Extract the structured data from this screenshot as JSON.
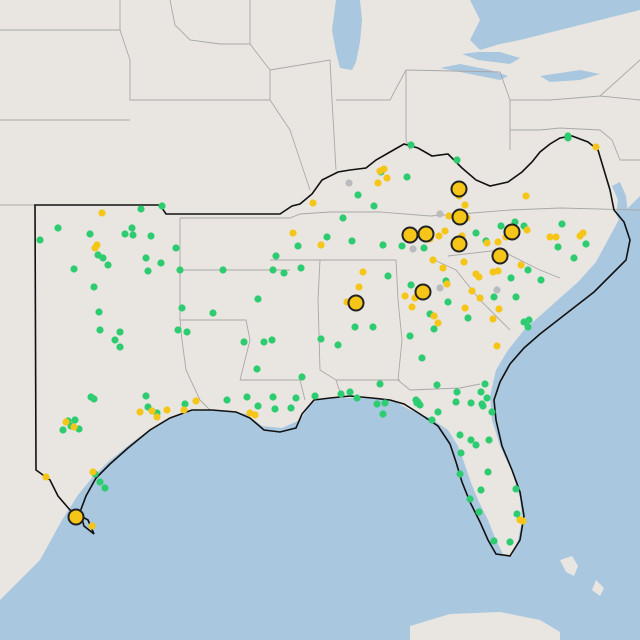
{
  "map": {
    "style": "light-gray-canvas",
    "colors": {
      "land": "#e9e6e1",
      "water": "#a9c7df",
      "state_border": "#a8a8a8",
      "region_outline": "#111111",
      "green_marker": "#2ecc71",
      "yellow_marker": "#f5c518",
      "gray_marker": "#b9bbbd",
      "large_marker_stroke": "#222222"
    },
    "legend": []
  },
  "markers": {
    "green": [
      [
        568,
        138
      ],
      [
        411,
        145
      ],
      [
        457,
        160
      ],
      [
        381,
        172
      ],
      [
        407,
        177
      ],
      [
        358,
        195
      ],
      [
        343,
        218
      ],
      [
        374,
        206
      ],
      [
        327,
        237
      ],
      [
        352,
        241
      ],
      [
        298,
        246
      ],
      [
        383,
        245
      ],
      [
        402,
        246
      ],
      [
        424,
        248
      ],
      [
        388,
        276
      ],
      [
        411,
        285
      ],
      [
        446,
        281
      ],
      [
        476,
        233
      ],
      [
        486,
        241
      ],
      [
        501,
        226
      ],
      [
        515,
        222
      ],
      [
        524,
        226
      ],
      [
        528,
        270
      ],
      [
        562,
        224
      ],
      [
        558,
        247
      ],
      [
        574,
        258
      ],
      [
        541,
        280
      ],
      [
        511,
        278
      ],
      [
        586,
        244
      ],
      [
        516,
        297
      ],
      [
        494,
        297
      ],
      [
        448,
        302
      ],
      [
        468,
        318
      ],
      [
        430,
        314
      ],
      [
        434,
        329
      ],
      [
        410,
        336
      ],
      [
        373,
        327
      ],
      [
        355,
        327
      ],
      [
        321,
        339
      ],
      [
        338,
        345
      ],
      [
        302,
        377
      ],
      [
        296,
        398
      ],
      [
        315,
        396
      ],
      [
        258,
        406
      ],
      [
        247,
        397
      ],
      [
        227,
        400
      ],
      [
        273,
        397
      ],
      [
        275,
        409
      ],
      [
        291,
        408
      ],
      [
        257,
        369
      ],
      [
        264,
        342
      ],
      [
        272,
        340
      ],
      [
        244,
        342
      ],
      [
        258,
        299
      ],
      [
        276,
        256
      ],
      [
        273,
        270
      ],
      [
        284,
        273
      ],
      [
        301,
        268
      ],
      [
        223,
        270
      ],
      [
        213,
        313
      ],
      [
        182,
        308
      ],
      [
        178,
        330
      ],
      [
        187,
        332
      ],
      [
        98,
        255
      ],
      [
        103,
        258
      ],
      [
        125,
        234
      ],
      [
        151,
        236
      ],
      [
        146,
        258
      ],
      [
        148,
        271
      ],
      [
        161,
        263
      ],
      [
        176,
        248
      ],
      [
        180,
        270
      ],
      [
        133,
        235
      ],
      [
        132,
        228
      ],
      [
        90,
        234
      ],
      [
        74,
        269
      ],
      [
        40,
        240
      ],
      [
        58,
        228
      ],
      [
        108,
        265
      ],
      [
        94,
        287
      ],
      [
        99,
        312
      ],
      [
        100,
        330
      ],
      [
        120,
        332
      ],
      [
        115,
        340
      ],
      [
        120,
        347
      ],
      [
        91,
        397
      ],
      [
        94,
        399
      ],
      [
        146,
        396
      ],
      [
        148,
        407
      ],
      [
        157,
        413
      ],
      [
        68,
        421
      ],
      [
        71,
        426
      ],
      [
        75,
        420
      ],
      [
        63,
        430
      ],
      [
        79,
        429
      ],
      [
        100,
        482
      ],
      [
        105,
        488
      ],
      [
        95,
        474
      ],
      [
        162,
        206
      ],
      [
        141,
        209
      ],
      [
        185,
        404
      ],
      [
        377,
        404
      ],
      [
        385,
        403
      ],
      [
        383,
        414
      ],
      [
        416,
        400
      ],
      [
        418,
        402
      ],
      [
        457,
        392
      ],
      [
        456,
        402
      ],
      [
        471,
        403
      ],
      [
        481,
        392
      ],
      [
        482,
        404
      ],
      [
        487,
        398
      ],
      [
        483,
        406
      ],
      [
        485,
        384
      ],
      [
        492,
        412
      ],
      [
        489,
        440
      ],
      [
        460,
        435
      ],
      [
        461,
        453
      ],
      [
        471,
        440
      ],
      [
        476,
        445
      ],
      [
        460,
        474
      ],
      [
        479,
        512
      ],
      [
        516,
        489
      ],
      [
        517,
        514
      ],
      [
        510,
        542
      ],
      [
        494,
        541
      ],
      [
        524,
        322
      ],
      [
        529,
        320
      ],
      [
        528,
        327
      ],
      [
        432,
        420
      ],
      [
        417,
        403
      ],
      [
        420,
        405
      ],
      [
        357,
        398
      ],
      [
        341,
        394
      ],
      [
        350,
        392
      ],
      [
        380,
        384
      ],
      [
        437,
        385
      ],
      [
        422,
        358
      ],
      [
        568,
        136
      ],
      [
        438,
        412
      ],
      [
        481,
        490
      ],
      [
        470,
        499
      ],
      [
        488,
        472
      ]
    ],
    "yellow": [
      [
        596,
        147
      ],
      [
        384,
        169
      ],
      [
        380,
        171
      ],
      [
        387,
        178
      ],
      [
        378,
        183
      ],
      [
        313,
        203
      ],
      [
        293,
        233
      ],
      [
        321,
        245
      ],
      [
        363,
        272
      ],
      [
        359,
        287
      ],
      [
        347,
        302
      ],
      [
        417,
        296
      ],
      [
        415,
        298
      ],
      [
        412,
        307
      ],
      [
        405,
        296
      ],
      [
        438,
        323
      ],
      [
        434,
        316
      ],
      [
        439,
        236
      ],
      [
        443,
        268
      ],
      [
        464,
        262
      ],
      [
        476,
        274
      ],
      [
        498,
        271
      ],
      [
        521,
        265
      ],
      [
        527,
        230
      ],
      [
        550,
        237
      ],
      [
        556,
        237
      ],
      [
        583,
        233
      ],
      [
        580,
        236
      ],
      [
        526,
        196
      ],
      [
        493,
        272
      ],
      [
        500,
        260
      ],
      [
        506,
        237
      ],
      [
        498,
        242
      ],
      [
        487,
        243
      ],
      [
        102,
        213
      ],
      [
        97,
        245
      ],
      [
        95,
        248
      ],
      [
        66,
        422
      ],
      [
        74,
        427
      ],
      [
        93,
        472
      ],
      [
        46,
        477
      ],
      [
        92,
        526
      ],
      [
        140,
        412
      ],
      [
        152,
        411
      ],
      [
        157,
        417
      ],
      [
        167,
        410
      ],
      [
        184,
        410
      ],
      [
        196,
        401
      ],
      [
        250,
        413
      ],
      [
        255,
        415
      ],
      [
        433,
        260
      ],
      [
        445,
        231
      ],
      [
        449,
        216
      ],
      [
        461,
        190
      ],
      [
        459,
        196
      ],
      [
        465,
        205
      ],
      [
        467,
        218
      ],
      [
        462,
        236
      ],
      [
        447,
        284
      ],
      [
        465,
        308
      ],
      [
        480,
        298
      ],
      [
        499,
        309
      ],
      [
        497,
        346
      ],
      [
        493,
        319
      ],
      [
        520,
        520
      ],
      [
        523,
        521
      ],
      [
        472,
        291
      ],
      [
        430,
        239
      ],
      [
        479,
        277
      ]
    ],
    "gray": [
      [
        349,
        183
      ],
      [
        413,
        249
      ],
      [
        497,
        290
      ],
      [
        440,
        288
      ],
      [
        352,
        301
      ],
      [
        440,
        214
      ]
    ],
    "large": [
      [
        459,
        189
      ],
      [
        460,
        217
      ],
      [
        459,
        244
      ],
      [
        410,
        235
      ],
      [
        426,
        234
      ],
      [
        512,
        232
      ],
      [
        500,
        256
      ],
      [
        423,
        292
      ],
      [
        356,
        303
      ],
      [
        76,
        517
      ]
    ]
  }
}
